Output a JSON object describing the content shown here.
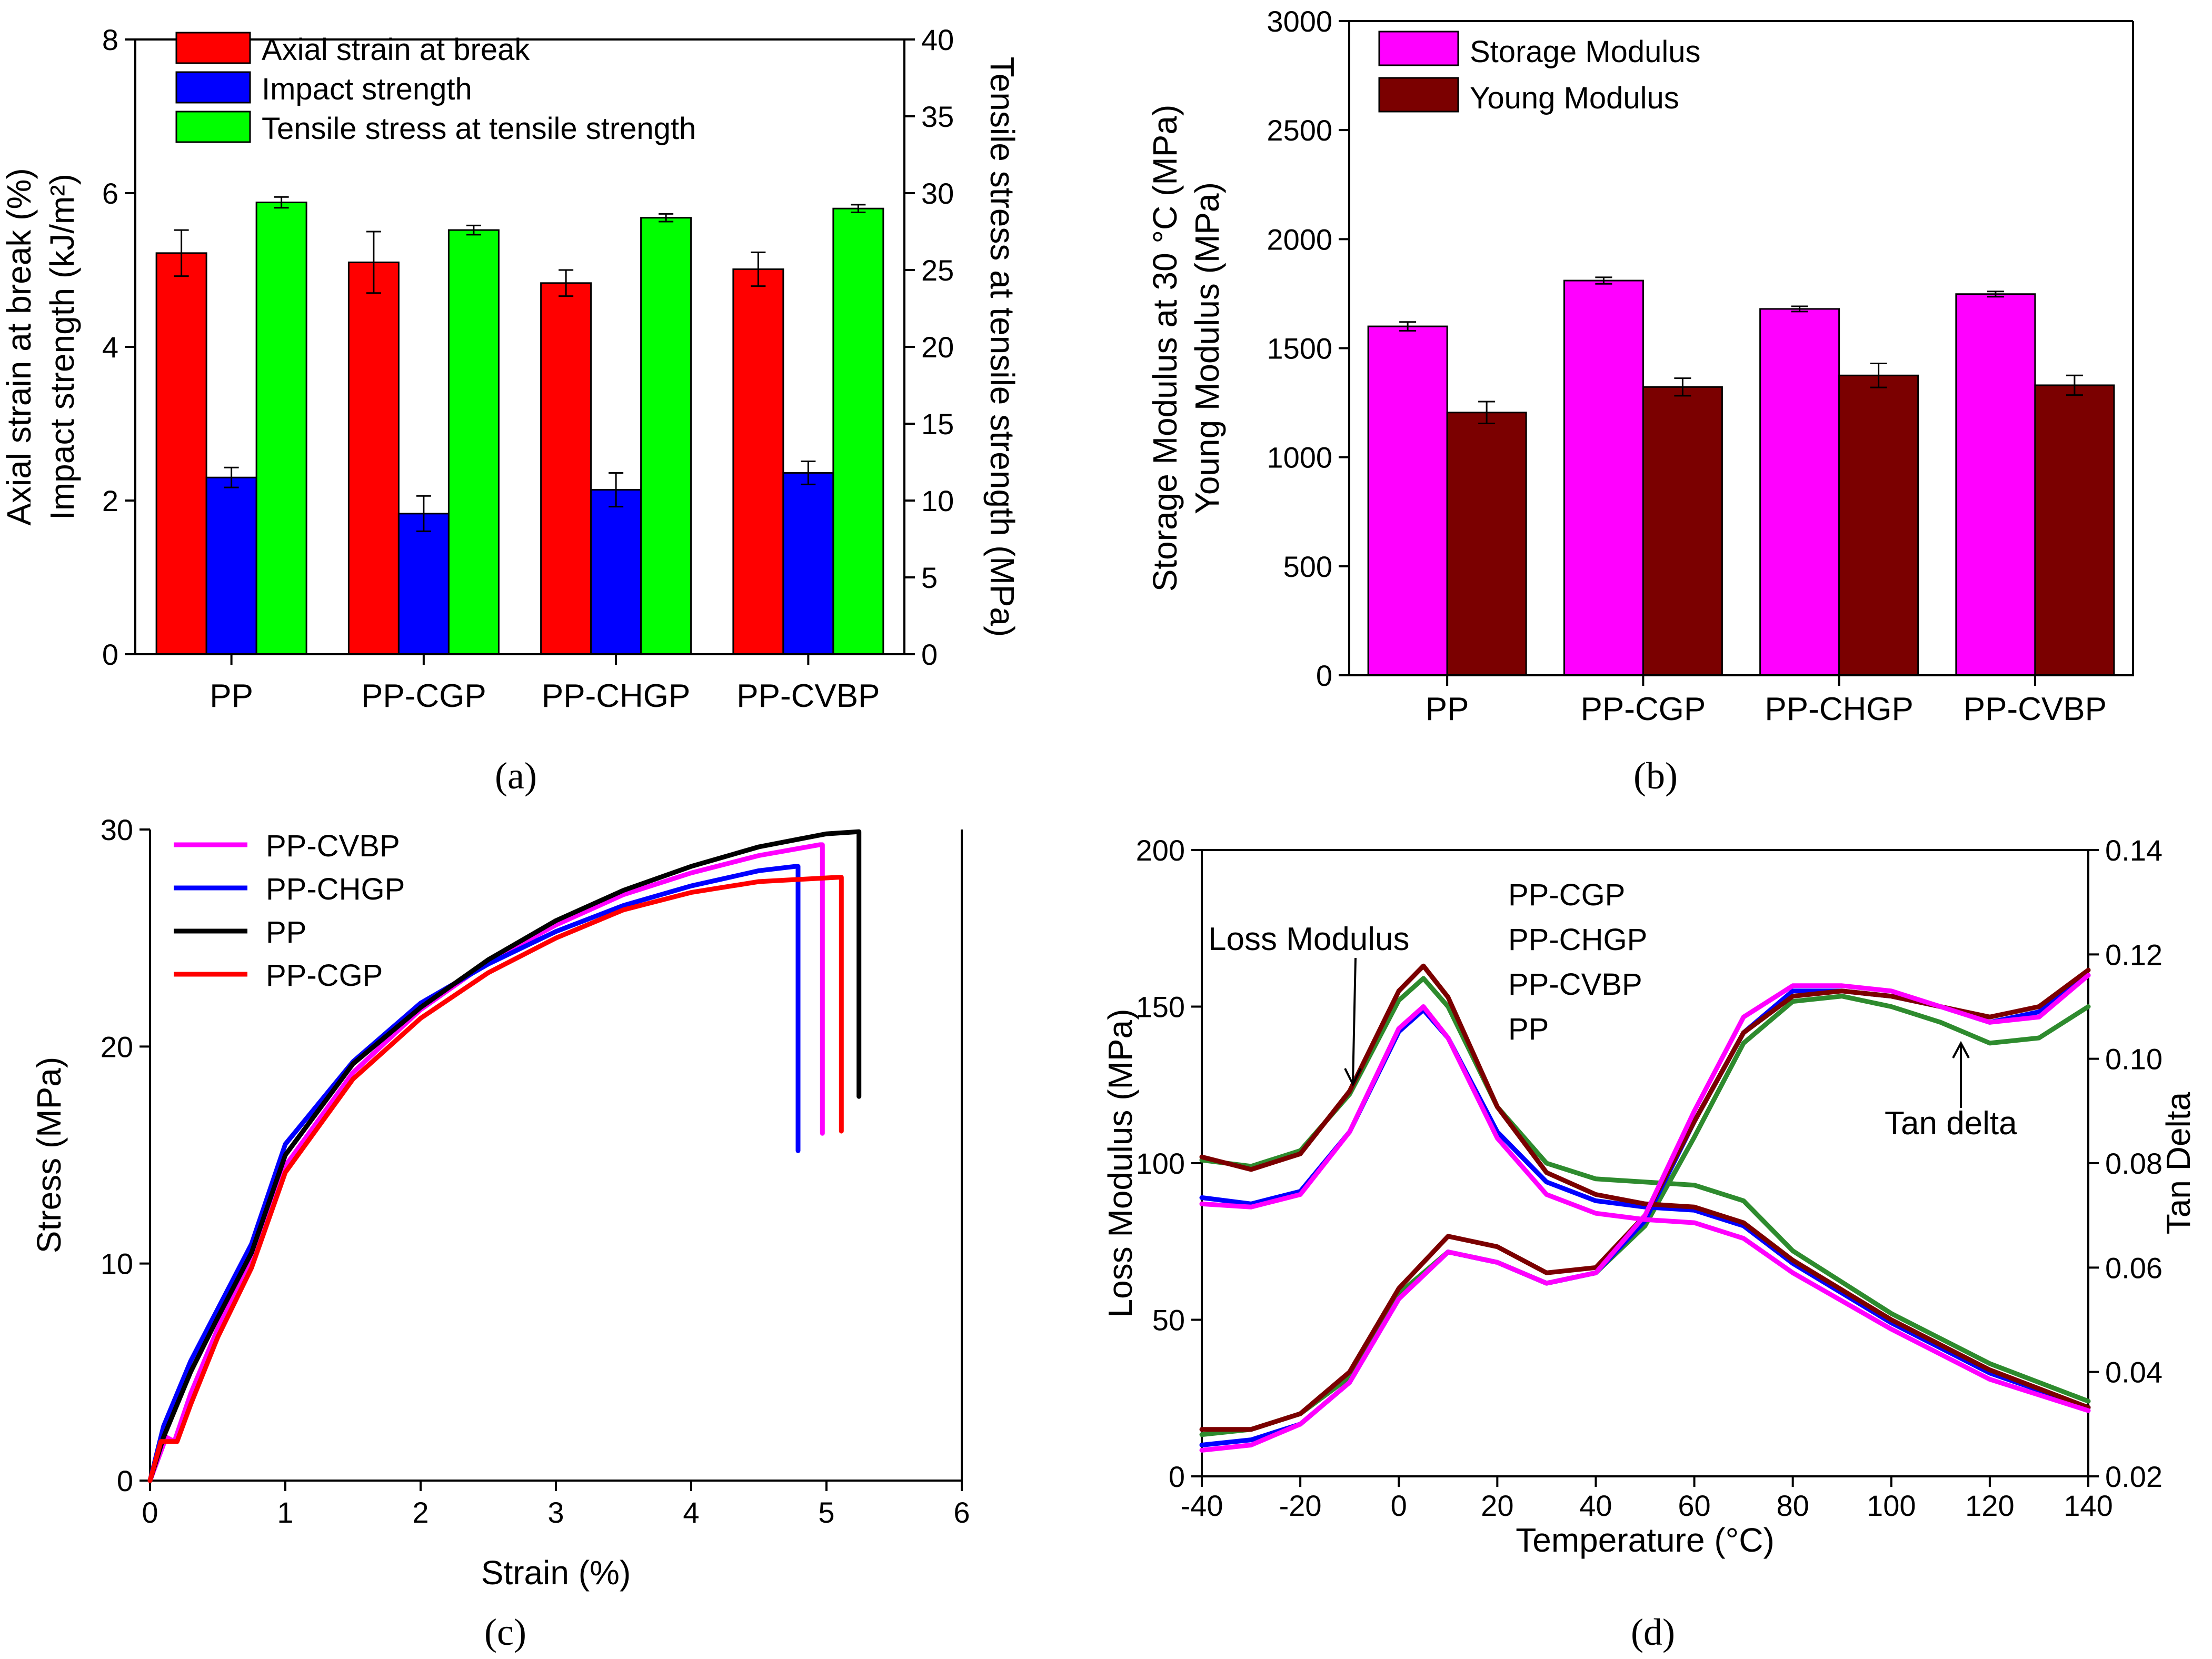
{
  "chart_data": [
    {
      "panel": "a",
      "panel_label": "(a)",
      "type": "bar",
      "categories": [
        "PP",
        "PP-CGP",
        "PP-CHGP",
        "PP-CVBP"
      ],
      "series": [
        {
          "name": "Axial strain at break",
          "color": "#ff0000",
          "axis": "left",
          "values": [
            5.22,
            5.1,
            4.83,
            5.01
          ],
          "errors": [
            0.3,
            0.4,
            0.17,
            0.22
          ]
        },
        {
          "name": "Impact strength",
          "color": "#0000ff",
          "axis": "left",
          "values": [
            2.3,
            1.83,
            2.14,
            2.36
          ],
          "errors": [
            0.13,
            0.23,
            0.22,
            0.15
          ]
        },
        {
          "name": "Tensile stress at tensile strength",
          "color": "#00ff00",
          "axis": "right",
          "values": [
            29.4,
            27.6,
            28.4,
            29.0
          ],
          "errors": [
            0.35,
            0.3,
            0.25,
            0.25
          ]
        }
      ],
      "ylabel_left_line1": "Axial strain at break (%)",
      "ylabel_left_line2": "Impact strength (kJ/m²)",
      "ylabel_right": "Tensile stress at tensile strength (MPa)",
      "ylim_left": [
        0,
        8
      ],
      "yticks_left": [
        "0",
        "2",
        "4",
        "6",
        "8"
      ],
      "ylim_right": [
        0,
        40
      ],
      "yticks_right": [
        "0",
        "5",
        "10",
        "15",
        "20",
        "25",
        "30",
        "35",
        "40"
      ],
      "legend_position": "top-left"
    },
    {
      "panel": "b",
      "panel_label": "(b)",
      "type": "bar",
      "categories": [
        "PP",
        "PP-CGP",
        "PP-CHGP",
        "PP-CVBP"
      ],
      "series": [
        {
          "name": "Storage Modulus",
          "color": "#ff00ff",
          "values": [
            1600,
            1810,
            1680,
            1748
          ],
          "errors": [
            20,
            15,
            12,
            12
          ]
        },
        {
          "name": "Young Modulus",
          "color": "#7b0000",
          "values": [
            1205,
            1322,
            1375,
            1330
          ],
          "errors": [
            50,
            40,
            55,
            45
          ]
        }
      ],
      "ylabel_line1": "Storage Modulus at 30 °C (MPa)",
      "ylabel_line2": "Young Modulus (MPa)",
      "ylim": [
        0,
        3000
      ],
      "yticks": [
        "0",
        "500",
        "1000",
        "1500",
        "2000",
        "2500",
        "3000"
      ],
      "legend_position": "top-left"
    },
    {
      "panel": "c",
      "panel_label": "(c)",
      "type": "line",
      "xlabel": "Strain (%)",
      "ylabel": "Stress (MPa)",
      "xlim": [
        0,
        6
      ],
      "xticks": [
        "0",
        "1",
        "2",
        "3",
        "4",
        "5",
        "6"
      ],
      "ylim": [
        0,
        30
      ],
      "yticks": [
        "0",
        "10",
        "20",
        "30"
      ],
      "legend_position": "top-left",
      "series": [
        {
          "name": "PP-CVBP",
          "color": "#ff00ff",
          "x": [
            0,
            0.12,
            0.18,
            0.3,
            0.5,
            0.75,
            1.0,
            1.5,
            2.0,
            2.5,
            3.0,
            3.5,
            4.0,
            4.5,
            4.95,
            4.97,
            4.97
          ],
          "y": [
            0,
            2.0,
            1.8,
            4.0,
            7.0,
            10.3,
            14.5,
            18.8,
            21.7,
            23.9,
            25.6,
            27.0,
            28.0,
            28.8,
            29.3,
            29.3,
            16.0
          ]
        },
        {
          "name": "PP-CHGP",
          "color": "#0000ff",
          "x": [
            0,
            0.1,
            0.3,
            0.5,
            0.75,
            1.0,
            1.5,
            2.0,
            2.5,
            3.0,
            3.5,
            4.0,
            4.5,
            4.77,
            4.79,
            4.79
          ],
          "y": [
            0,
            2.5,
            5.5,
            7.9,
            10.9,
            15.5,
            19.3,
            22.0,
            23.8,
            25.3,
            26.5,
            27.4,
            28.1,
            28.3,
            28.3,
            15.2
          ]
        },
        {
          "name": "PP",
          "color": "#000000",
          "x": [
            0,
            0.1,
            0.3,
            0.5,
            0.75,
            1.0,
            1.5,
            2.0,
            2.5,
            3.0,
            3.5,
            4.0,
            4.5,
            5.0,
            5.24,
            5.24
          ],
          "y": [
            0,
            2.0,
            5.0,
            7.5,
            10.5,
            15.0,
            19.2,
            21.8,
            24.0,
            25.8,
            27.2,
            28.3,
            29.2,
            29.8,
            29.9,
            17.7
          ]
        },
        {
          "name": "PP-CGP",
          "color": "#ff0000",
          "x": [
            0,
            0.08,
            0.2,
            0.3,
            0.5,
            0.75,
            1.0,
            1.5,
            2.0,
            2.5,
            3.0,
            3.5,
            4.0,
            4.5,
            5.09,
            5.11,
            5.11
          ],
          "y": [
            0,
            1.8,
            1.8,
            3.5,
            6.6,
            9.8,
            14.2,
            18.5,
            21.3,
            23.4,
            25.0,
            26.3,
            27.1,
            27.6,
            27.8,
            27.8,
            16.1
          ]
        }
      ]
    },
    {
      "panel": "d",
      "panel_label": "(d)",
      "type": "line",
      "xlabel": "Temperature (°C)",
      "ylabel_left": "Loss Modulus (MPa)",
      "ylabel_right": "Tan Delta",
      "xlim": [
        -40,
        140
      ],
      "xticks": [
        "-40",
        "-20",
        "0",
        "20",
        "40",
        "60",
        "80",
        "100",
        "120",
        "140"
      ],
      "ylim_left": [
        0,
        200
      ],
      "yticks_left": [
        "0",
        "50",
        "100",
        "150",
        "200"
      ],
      "ylim_right": [
        0.02,
        0.14
      ],
      "yticks_right": [
        "0.02",
        "0.04",
        "0.06",
        "0.08",
        "0.10",
        "0.12",
        "0.14"
      ],
      "legend_position": "top-center",
      "annotations": [
        "Loss Modulus",
        "Tan delta"
      ],
      "series": [
        {
          "name": "PP-CGP",
          "color": "#2e8b2e",
          "loss_modulus": {
            "x": [
              -40,
              -30,
              -20,
              -10,
              0,
              5,
              10,
              20,
              30,
              40,
              50,
              60,
              70,
              80,
              100,
              120,
              140
            ],
            "y": [
              101,
              99,
              104,
              122,
              152,
              159,
              150,
              118,
              100,
              95,
              94,
              93,
              88,
              72,
              52,
              36,
              24
            ]
          },
          "tan_delta": {
            "x": [
              -40,
              -30,
              -20,
              -10,
              0,
              10,
              20,
              30,
              40,
              50,
              60,
              70,
              80,
              90,
              100,
              110,
              120,
              130,
              140
            ],
            "y": [
              0.028,
              0.029,
              0.032,
              0.039,
              0.055,
              0.063,
              0.061,
              0.057,
              0.059,
              0.068,
              0.085,
              0.103,
              0.111,
              0.112,
              0.11,
              0.107,
              0.103,
              0.104,
              0.11
            ]
          }
        },
        {
          "name": "PP-CHGP",
          "color": "#0000ff",
          "loss_modulus": {
            "x": [
              -40,
              -30,
              -20,
              -10,
              0,
              5,
              10,
              20,
              30,
              40,
              50,
              60,
              70,
              80,
              100,
              120,
              140
            ],
            "y": [
              89,
              87,
              91,
              110,
              142,
              149,
              140,
              110,
              94,
              88,
              86,
              85,
              80,
              68,
              49,
              33,
              22
            ]
          },
          "tan_delta": {
            "x": [
              -40,
              -30,
              -20,
              -10,
              0,
              10,
              20,
              30,
              40,
              50,
              60,
              70,
              80,
              90,
              100,
              110,
              120,
              130,
              140
            ],
            "y": [
              0.026,
              0.027,
              0.03,
              0.038,
              0.054,
              0.063,
              0.061,
              0.057,
              0.059,
              0.069,
              0.088,
              0.105,
              0.113,
              0.113,
              0.112,
              0.11,
              0.107,
              0.109,
              0.116
            ]
          }
        },
        {
          "name": "PP-CVBP",
          "color": "#7b0000",
          "loss_modulus": {
            "x": [
              -40,
              -30,
              -20,
              -10,
              0,
              5,
              10,
              20,
              30,
              40,
              50,
              60,
              70,
              80,
              100,
              120,
              140
            ],
            "y": [
              102,
              98,
              103,
              123,
              155,
              163,
              153,
              118,
              97,
              90,
              87,
              86,
              81,
              69,
              50,
              34,
              22
            ]
          },
          "tan_delta": {
            "x": [
              -40,
              -30,
              -20,
              -10,
              0,
              10,
              20,
              30,
              40,
              50,
              60,
              70,
              80,
              90,
              100,
              110,
              120,
              130,
              140
            ],
            "y": [
              0.029,
              0.029,
              0.032,
              0.04,
              0.056,
              0.066,
              0.064,
              0.059,
              0.06,
              0.07,
              0.088,
              0.105,
              0.112,
              0.113,
              0.112,
              0.11,
              0.108,
              0.11,
              0.117
            ]
          }
        },
        {
          "name": "PP",
          "color": "#ff00ff",
          "loss_modulus": {
            "x": [
              -40,
              -30,
              -20,
              -10,
              0,
              5,
              10,
              20,
              30,
              40,
              50,
              60,
              70,
              80,
              100,
              120,
              140
            ],
            "y": [
              87,
              86,
              90,
              110,
              143,
              150,
              140,
              108,
              90,
              84,
              82,
              81,
              76,
              65,
              47,
              31,
              21
            ]
          },
          "tan_delta": {
            "x": [
              -40,
              -30,
              -20,
              -10,
              0,
              10,
              20,
              30,
              40,
              50,
              60,
              70,
              80,
              90,
              100,
              110,
              120,
              130,
              140
            ],
            "y": [
              0.025,
              0.026,
              0.03,
              0.038,
              0.054,
              0.063,
              0.061,
              0.057,
              0.059,
              0.07,
              0.09,
              0.108,
              0.114,
              0.114,
              0.113,
              0.11,
              0.107,
              0.108,
              0.116
            ]
          }
        }
      ]
    }
  ]
}
